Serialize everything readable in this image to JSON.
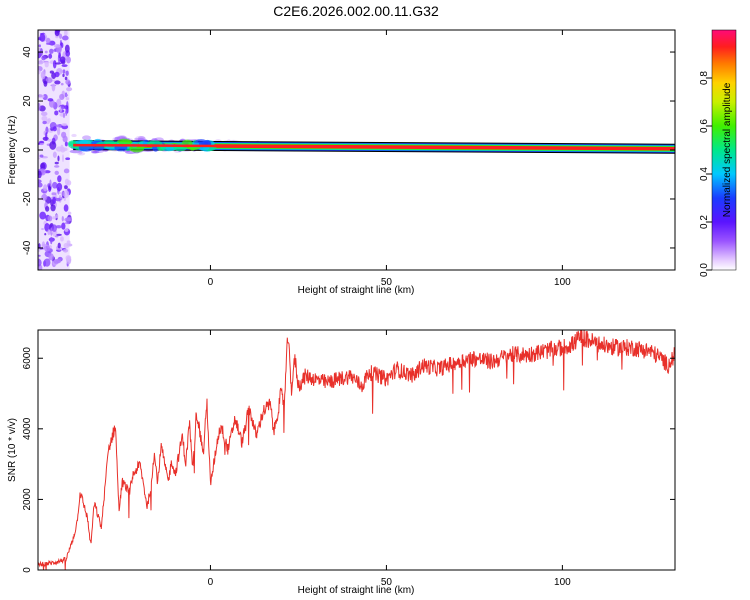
{
  "title": "C2E6.2026.002.00.11.G32",
  "colors": {
    "snr_line": "#e8302a",
    "axis": "#000000",
    "background": "#ffffff"
  },
  "chart_data": [
    {
      "type": "heatmap",
      "title": "C2E6.2026.002.00.11.G32",
      "xlabel": "Height of straight line (km)",
      "ylabel": "Frequency (Hz)",
      "xlim": [
        -49,
        132
      ],
      "ylim": [
        -49,
        49
      ],
      "x_ticks": [
        "0",
        "50",
        "100"
      ],
      "x_tick_values": [
        0,
        50,
        100
      ],
      "y_ticks": [
        "40",
        "20",
        "0",
        "-20",
        "-40"
      ],
      "y_tick_values": [
        40,
        20,
        0,
        -20,
        -40
      ],
      "colorbar": {
        "label": "Normalized spectral amplitude",
        "range": [
          0,
          1
        ],
        "ticks": [
          "0.0",
          "0.2",
          "0.4",
          "0.6",
          "0.8"
        ],
        "tick_values": [
          0,
          0.2,
          0.4,
          0.6,
          0.8
        ]
      },
      "features": {
        "noise_band_x": [
          -49,
          -40
        ],
        "carrier_line": {
          "x_start": -39,
          "x_end": 132,
          "frequency_start": 2,
          "frequency_end": 0.5
        },
        "turbulent_section_x": [
          -39,
          0
        ]
      }
    },
    {
      "type": "line",
      "xlabel": "Height of straight line (km)",
      "ylabel": "SNR (10 * v/v)",
      "xlim": [
        -49,
        132
      ],
      "ylim": [
        0,
        6800
      ],
      "x_ticks": [
        "0",
        "50",
        "100"
      ],
      "x_tick_values": [
        0,
        50,
        100
      ],
      "y_ticks": [
        "0",
        "2000",
        "4000",
        "6000"
      ],
      "y_tick_values": [
        0,
        2000,
        4000,
        6000
      ],
      "series": [
        {
          "x": [
            -49,
            -45,
            -41,
            -39,
            -38,
            -37,
            -35,
            -34,
            -33,
            -31,
            -30,
            -29,
            -27,
            -26,
            -25,
            -23,
            -22,
            -20,
            -18,
            -17,
            -16,
            -15,
            -14,
            -12,
            -11,
            -10,
            -8,
            -7,
            -6,
            -5,
            -4,
            -2,
            -1,
            0,
            2,
            3,
            5,
            7,
            9,
            11,
            13,
            15,
            17,
            18,
            19,
            20,
            21,
            22,
            23,
            24,
            25,
            27,
            30,
            33,
            36,
            40,
            43,
            45,
            48,
            50,
            53,
            55,
            58,
            60,
            65,
            70,
            75,
            80,
            85,
            90,
            95,
            100,
            103,
            105,
            108,
            110,
            115,
            120,
            125,
            128,
            130,
            132
          ],
          "y": [
            150,
            200,
            300,
            900,
            1300,
            2200,
            1500,
            700,
            1900,
            1200,
            2300,
            3400,
            4100,
            1700,
            2500,
            2200,
            2700,
            3000,
            1800,
            2300,
            3300,
            2500,
            3500,
            2500,
            3100,
            2700,
            3800,
            3000,
            4200,
            2800,
            4500,
            3300,
            4800,
            2400,
            3700,
            4100,
            3400,
            4300,
            3600,
            4600,
            3800,
            4500,
            4700,
            3900,
            4400,
            5000,
            4700,
            6700,
            5100,
            6000,
            5200,
            5500,
            5400,
            5300,
            5400,
            5500,
            5200,
            5600,
            5500,
            5400,
            5700,
            5600,
            5500,
            5800,
            5700,
            5900,
            6000,
            5900,
            6100,
            6100,
            6200,
            6300,
            6400,
            6600,
            6500,
            6400,
            6300,
            6300,
            6200,
            6000,
            5800,
            6100
          ]
        }
      ]
    }
  ]
}
